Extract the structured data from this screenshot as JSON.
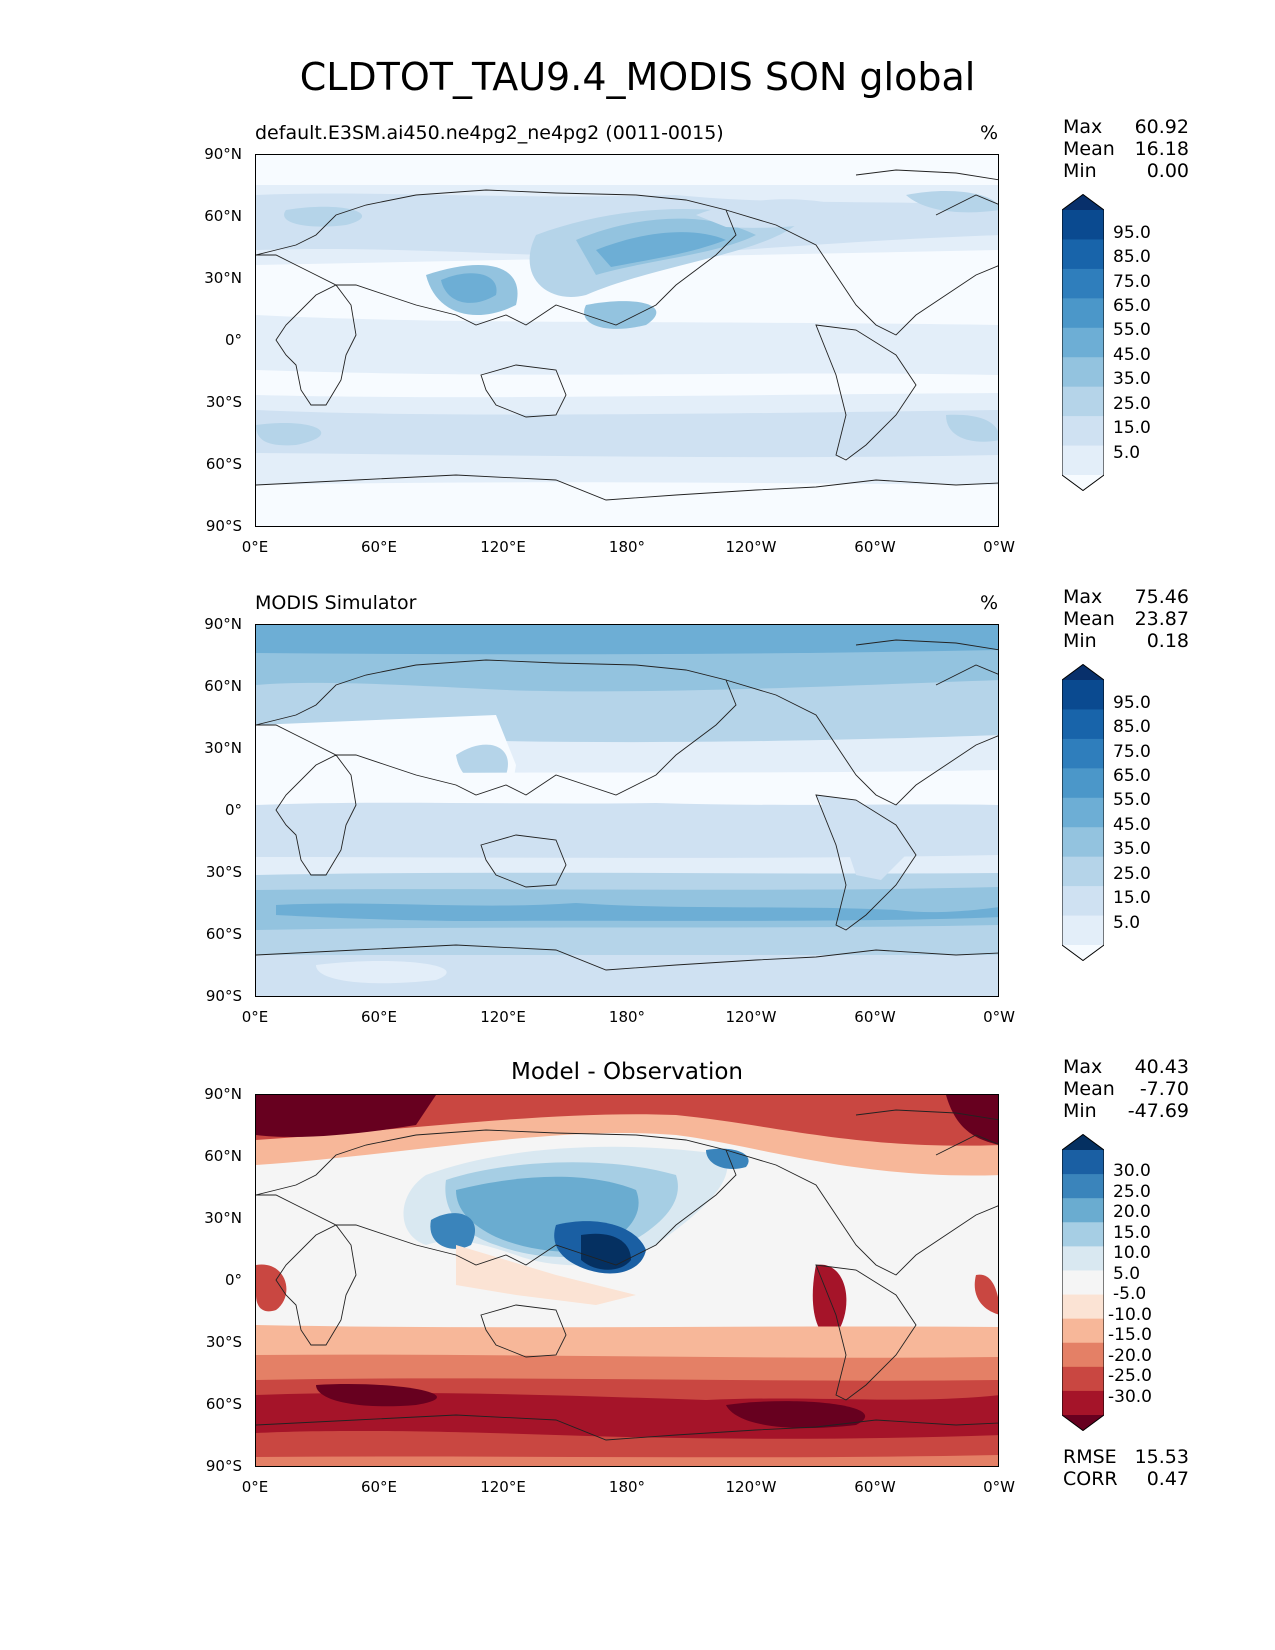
{
  "figure": {
    "title": "CLDTOT_TAU9.4_MODIS SON global"
  },
  "axes": {
    "lat_labels": [
      "90°N",
      "60°N",
      "30°N",
      "0°",
      "30°S",
      "60°S",
      "90°S"
    ],
    "lon_labels": [
      "0°E",
      "60°E",
      "120°E",
      "180°",
      "120°W",
      "60°W",
      "0°W"
    ]
  },
  "panels": [
    {
      "title": "default.E3SM.ai450.ne4pg2_ne4pg2 (0011-0015)",
      "unit": "%",
      "stats": {
        "max_label": "Max",
        "max": "60.92",
        "mean_label": "Mean",
        "mean": "16.18",
        "min_label": "Min",
        "min": "0.00"
      },
      "colorbar_labels": [
        "95.0",
        "85.0",
        "75.0",
        "65.0",
        "55.0",
        "45.0",
        "35.0",
        "25.0",
        "15.0",
        "5.0"
      ]
    },
    {
      "title": "MODIS Simulator",
      "unit": "%",
      "stats": {
        "max_label": "Max",
        "max": "75.46",
        "mean_label": "Mean",
        "mean": "23.87",
        "min_label": "Min",
        "min": "0.18"
      },
      "colorbar_labels": [
        "95.0",
        "85.0",
        "75.0",
        "65.0",
        "55.0",
        "45.0",
        "35.0",
        "25.0",
        "15.0",
        "5.0"
      ]
    },
    {
      "title": "Model - Observation",
      "stats": {
        "max_label": "Max",
        "max": "40.43",
        "mean_label": "Mean",
        "mean": "-7.70",
        "min_label": "Min",
        "min": "-47.69"
      },
      "colorbar_labels": [
        "30.0",
        "25.0",
        "20.0",
        "15.0",
        "10.0",
        "5.0",
        "-5.0",
        "-10.0",
        "-15.0",
        "-20.0",
        "-25.0",
        "-30.0"
      ],
      "metrics": {
        "rmse_label": "RMSE",
        "rmse": "15.53",
        "corr_label": "CORR",
        "corr": "0.47"
      }
    }
  ],
  "colors": {
    "blues": [
      "#f7fbff",
      "#e3eef9",
      "#cfe1f2",
      "#b5d4e9",
      "#93c3df",
      "#6daed5",
      "#4b97c9",
      "#2f7ebc",
      "#1864aa",
      "#0a4a90",
      "#08306b"
    ],
    "rdbu": [
      "#67001f",
      "#a51429",
      "#c94741",
      "#e48066",
      "#f7b799",
      "#fbe3d4",
      "#f5f5f5",
      "#d9e8f1",
      "#a6cee4",
      "#6aacd0",
      "#3a84bb",
      "#1a5fa3",
      "#053061"
    ]
  }
}
